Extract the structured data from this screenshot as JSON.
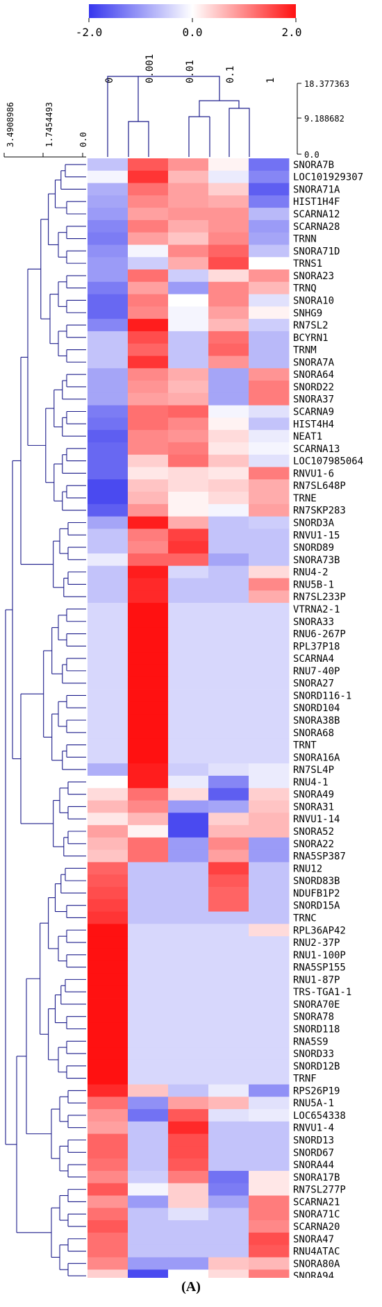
{
  "caption": "(A)",
  "chart_data": {
    "type": "heatmap",
    "colorbar": {
      "min": -2.0,
      "max": 2.0,
      "tick_labels": [
        "-2.0",
        "0.0",
        "2.0"
      ],
      "colors": [
        "#3636ee",
        "#ffffff",
        "#ff1111"
      ]
    },
    "columns": [
      "0",
      "0.001",
      "0.01",
      "0.1",
      "1"
    ],
    "column_dendrogram_scale": [
      "18.377363",
      "9.188682",
      "0.0"
    ],
    "row_dendrogram_scale": [
      "3.4908986",
      "1.7454493",
      "0.0"
    ],
    "rows": [
      "SNORA7B",
      "LOC101929307",
      "SNORA71A",
      "HIST1H4F",
      "SCARNA12",
      "SCARNA28",
      "TRNN",
      "SNORA71D",
      "TRNS1",
      "SNORA23",
      "TRNQ",
      "SNORA10",
      "SNHG9",
      "RN7SL2",
      "BCYRN1",
      "TRNM",
      "SNORA7A",
      "SNORA64",
      "SNORD22",
      "SNORA37",
      "SCARNA9",
      "HIST4H4",
      "NEAT1",
      "SCARNA13",
      "LOC107985064",
      "RNVU1-6",
      "RN7SL648P",
      "TRNE",
      "RN7SKP283",
      "SNORD3A",
      "RNVU1-15",
      "SNORD89",
      "SNORA73B",
      "RNU4-2",
      "RNU5B-1",
      "RN7SL233P",
      "VTRNA2-1",
      "SNORA33",
      "RNU6-267P",
      "RPL37P18",
      "SCARNA4",
      "RNU7-40P",
      "SNORA27",
      "SNORD116-1",
      "SNORD104",
      "SNORA38B",
      "SNORA68",
      "TRNT",
      "SNORA16A",
      "RN7SL4P",
      "RNU4-1",
      "SNORA49",
      "SNORA31",
      "RNVU1-14",
      "SNORA52",
      "SNORA22",
      "RNA5SP387",
      "RNU12",
      "SNORD83B",
      "NDUFB1P2",
      "SNORD15A",
      "TRNC",
      "RPL36AP42",
      "RNU2-37P",
      "RNU1-100P",
      "RNA5SP155",
      "RNU1-87P",
      "TRS-TGA1-1",
      "SNORA70E",
      "SNORA78",
      "SNORD118",
      "RNA5S9",
      "SNORD33",
      "SNORD12B",
      "TRNF",
      "RPS26P19",
      "RNU5A-1",
      "LOC654338",
      "RNVU1-4",
      "SNORD13",
      "SNORD67",
      "SNORA44",
      "SNORA17B",
      "RN7SL277P",
      "SCARNA21",
      "SNORA71C",
      "SCARNA20",
      "SNORA47",
      "RNU4ATAC",
      "SNORA80A",
      "SNORA94"
    ],
    "values": [
      [
        -0.6,
        1.4,
        0.9,
        0.1,
        -1.4
      ],
      [
        -0.1,
        1.7,
        0.6,
        -0.2,
        -1.2
      ],
      [
        -0.8,
        1.2,
        0.8,
        0.4,
        -1.6
      ],
      [
        -0.9,
        1.0,
        0.8,
        0.7,
        -1.3
      ],
      [
        -1.0,
        0.8,
        0.9,
        0.9,
        -0.7
      ],
      [
        -1.2,
        1.1,
        0.7,
        0.9,
        -1.0
      ],
      [
        -1.3,
        0.8,
        0.5,
        1.0,
        -0.9
      ],
      [
        -1.1,
        -0.1,
        1.0,
        1.3,
        -0.6
      ],
      [
        -1.0,
        -0.5,
        0.7,
        1.5,
        0.0
      ],
      [
        -1.0,
        1.2,
        -0.5,
        0.3,
        0.9
      ],
      [
        -1.3,
        0.8,
        -1.0,
        1.0,
        0.6
      ],
      [
        -1.5,
        1.1,
        0.0,
        1.0,
        -0.3
      ],
      [
        -1.5,
        1.0,
        -0.1,
        0.8,
        0.1
      ],
      [
        -1.2,
        1.9,
        -0.1,
        0.6,
        -0.5
      ],
      [
        -0.6,
        1.5,
        -0.6,
        1.2,
        -0.7
      ],
      [
        -0.6,
        1.3,
        -0.6,
        1.3,
        -0.7
      ],
      [
        -0.6,
        1.7,
        -0.6,
        0.9,
        -0.7
      ],
      [
        -0.9,
        1.0,
        0.7,
        -0.9,
        0.9
      ],
      [
        -0.9,
        0.9,
        0.6,
        -0.9,
        1.1
      ],
      [
        -0.9,
        0.8,
        0.7,
        -0.9,
        1.1
      ],
      [
        -1.3,
        1.2,
        1.3,
        -0.1,
        -0.3
      ],
      [
        -1.4,
        1.2,
        1.0,
        0.1,
        -0.6
      ],
      [
        -1.6,
        1.0,
        0.9,
        0.3,
        -0.2
      ],
      [
        -1.5,
        1.0,
        1.1,
        0.2,
        -0.1
      ],
      [
        -1.5,
        0.4,
        1.2,
        0.5,
        -0.3
      ],
      [
        -1.5,
        0.2,
        0.3,
        0.2,
        1.1
      ],
      [
        -1.8,
        0.5,
        0.3,
        0.4,
        0.7
      ],
      [
        -1.8,
        0.6,
        0.1,
        0.3,
        0.7
      ],
      [
        -1.6,
        0.9,
        0.1,
        -0.1,
        0.8
      ],
      [
        -0.9,
        1.9,
        0.7,
        -0.6,
        -0.5
      ],
      [
        -0.6,
        1.1,
        1.6,
        -0.6,
        -0.6
      ],
      [
        -0.6,
        1.0,
        1.7,
        -0.6,
        -0.6
      ],
      [
        -0.2,
        1.3,
        1.3,
        -0.9,
        -0.6
      ],
      [
        -0.6,
        1.9,
        -0.4,
        -0.6,
        0.3
      ],
      [
        -0.6,
        1.8,
        -0.6,
        -0.6,
        1.0
      ],
      [
        -0.6,
        1.8,
        -0.6,
        -0.6,
        0.7
      ],
      [
        -0.4,
        2.0,
        -0.4,
        -0.4,
        -0.4
      ],
      [
        -0.4,
        2.0,
        -0.4,
        -0.4,
        -0.4
      ],
      [
        -0.4,
        2.0,
        -0.4,
        -0.4,
        -0.4
      ],
      [
        -0.4,
        2.0,
        -0.4,
        -0.4,
        -0.4
      ],
      [
        -0.4,
        2.0,
        -0.4,
        -0.4,
        -0.4
      ],
      [
        -0.4,
        2.0,
        -0.4,
        -0.4,
        -0.4
      ],
      [
        -0.4,
        2.0,
        -0.4,
        -0.4,
        -0.4
      ],
      [
        -0.4,
        2.0,
        -0.4,
        -0.4,
        -0.4
      ],
      [
        -0.4,
        2.0,
        -0.4,
        -0.4,
        -0.4
      ],
      [
        -0.4,
        2.0,
        -0.4,
        -0.4,
        -0.4
      ],
      [
        -0.4,
        2.0,
        -0.4,
        -0.4,
        -0.4
      ],
      [
        -0.4,
        2.0,
        -0.4,
        -0.4,
        -0.4
      ],
      [
        -0.4,
        2.0,
        -0.4,
        -0.4,
        -0.4
      ],
      [
        -0.8,
        1.9,
        -0.5,
        -0.3,
        -0.2
      ],
      [
        0.0,
        1.9,
        -0.2,
        -1.2,
        -0.2
      ],
      [
        0.3,
        1.2,
        0.3,
        -1.6,
        0.4
      ],
      [
        0.6,
        1.0,
        -1.0,
        -0.9,
        0.5
      ],
      [
        0.2,
        0.6,
        -1.8,
        0.4,
        0.6
      ],
      [
        0.8,
        0.1,
        -1.8,
        0.6,
        0.6
      ],
      [
        0.6,
        1.2,
        -1.0,
        1.0,
        -1.0
      ],
      [
        0.5,
        1.2,
        -1.0,
        0.8,
        -1.0
      ],
      [
        1.3,
        -0.6,
        -0.6,
        1.6,
        -0.6
      ],
      [
        1.4,
        -0.6,
        -0.6,
        1.4,
        -0.6
      ],
      [
        1.5,
        -0.6,
        -0.6,
        1.3,
        -0.6
      ],
      [
        1.6,
        -0.6,
        -0.6,
        1.3,
        -0.6
      ],
      [
        1.7,
        -0.6,
        -0.6,
        -0.6,
        -0.6
      ],
      [
        2.0,
        -0.4,
        -0.4,
        -0.4,
        0.3
      ],
      [
        2.0,
        -0.4,
        -0.4,
        -0.4,
        -0.4
      ],
      [
        2.0,
        -0.4,
        -0.4,
        -0.4,
        -0.4
      ],
      [
        2.0,
        -0.4,
        -0.4,
        -0.4,
        -0.4
      ],
      [
        2.0,
        -0.4,
        -0.4,
        -0.4,
        -0.4
      ],
      [
        2.0,
        -0.4,
        -0.4,
        -0.4,
        -0.4
      ],
      [
        2.0,
        -0.4,
        -0.4,
        -0.4,
        -0.4
      ],
      [
        2.0,
        -0.4,
        -0.4,
        -0.4,
        -0.4
      ],
      [
        2.0,
        -0.4,
        -0.4,
        -0.4,
        -0.4
      ],
      [
        2.0,
        -0.4,
        -0.4,
        -0.4,
        -0.4
      ],
      [
        2.0,
        -0.4,
        -0.4,
        -0.4,
        -0.4
      ],
      [
        2.0,
        -0.4,
        -0.4,
        -0.4,
        -0.4
      ],
      [
        2.0,
        -0.4,
        -0.4,
        -0.4,
        -0.4
      ],
      [
        1.8,
        0.5,
        -0.6,
        -0.2,
        -1.1
      ],
      [
        1.2,
        -1.1,
        0.8,
        0.6,
        -0.3
      ],
      [
        0.9,
        -1.4,
        1.4,
        -0.3,
        -0.2
      ],
      [
        0.8,
        -0.6,
        1.8,
        -0.6,
        -0.6
      ],
      [
        1.3,
        -0.6,
        1.5,
        -0.6,
        -0.6
      ],
      [
        1.3,
        -0.6,
        1.5,
        -0.6,
        -0.6
      ],
      [
        1.2,
        -0.6,
        1.4,
        -0.6,
        -0.6
      ],
      [
        1.0,
        -0.5,
        1.1,
        -1.4,
        0.2
      ],
      [
        1.4,
        -0.1,
        0.4,
        -1.3,
        0.2
      ],
      [
        0.9,
        -1.0,
        0.4,
        -0.9,
        1.1
      ],
      [
        1.2,
        -0.6,
        -0.3,
        -0.6,
        1.1
      ],
      [
        1.4,
        -0.6,
        -0.6,
        -0.6,
        1.0
      ],
      [
        1.2,
        -0.6,
        -0.6,
        -0.6,
        1.5
      ],
      [
        1.2,
        -0.6,
        -0.6,
        -0.6,
        1.4
      ],
      [
        1.0,
        -1.0,
        -1.0,
        0.5,
        0.6
      ],
      [
        0.4,
        -1.8,
        0.0,
        0.3,
        1.1
      ]
    ],
    "color_scale": "blue-white-red"
  }
}
